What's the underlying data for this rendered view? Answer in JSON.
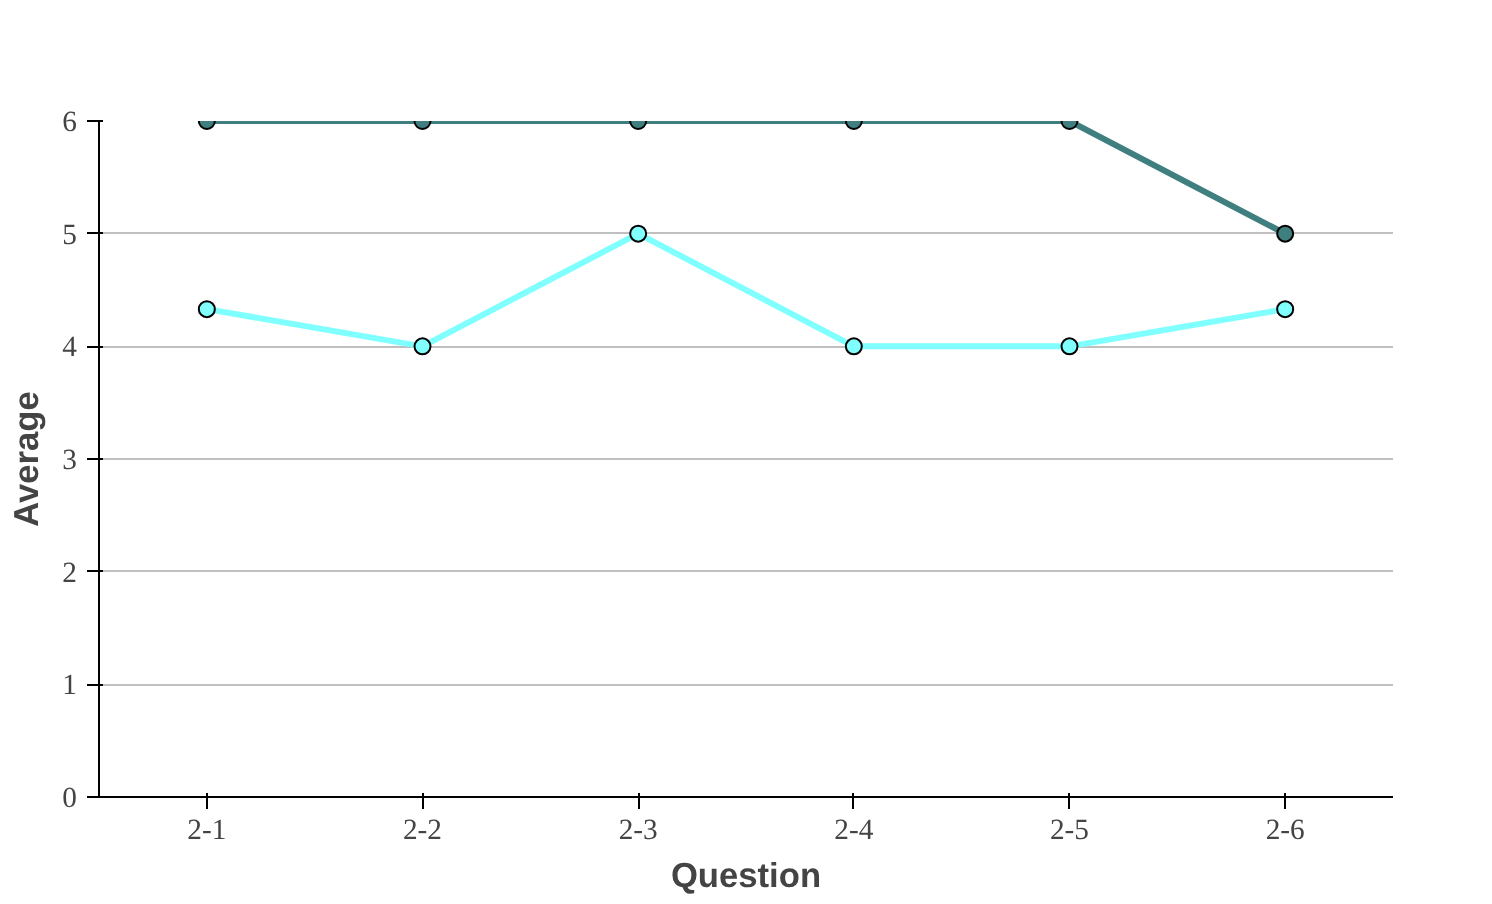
{
  "chart_data": {
    "type": "line",
    "xlabel": "Question",
    "ylabel": "Average",
    "categories": [
      "2-1",
      "2-2",
      "2-3",
      "2-4",
      "2-5",
      "2-6"
    ],
    "series": [
      {
        "color": "#3f7f7f",
        "values": [
          6,
          6,
          6,
          6,
          6,
          5
        ]
      },
      {
        "color": "#80ffff",
        "values": [
          4.33,
          4,
          5,
          4,
          4,
          4.33
        ]
      }
    ],
    "ylim": [
      0,
      6
    ],
    "yticks": [
      0,
      1,
      2,
      3,
      4,
      5,
      6
    ],
    "grid": "y",
    "marker": "circle",
    "line_style": "solid"
  }
}
